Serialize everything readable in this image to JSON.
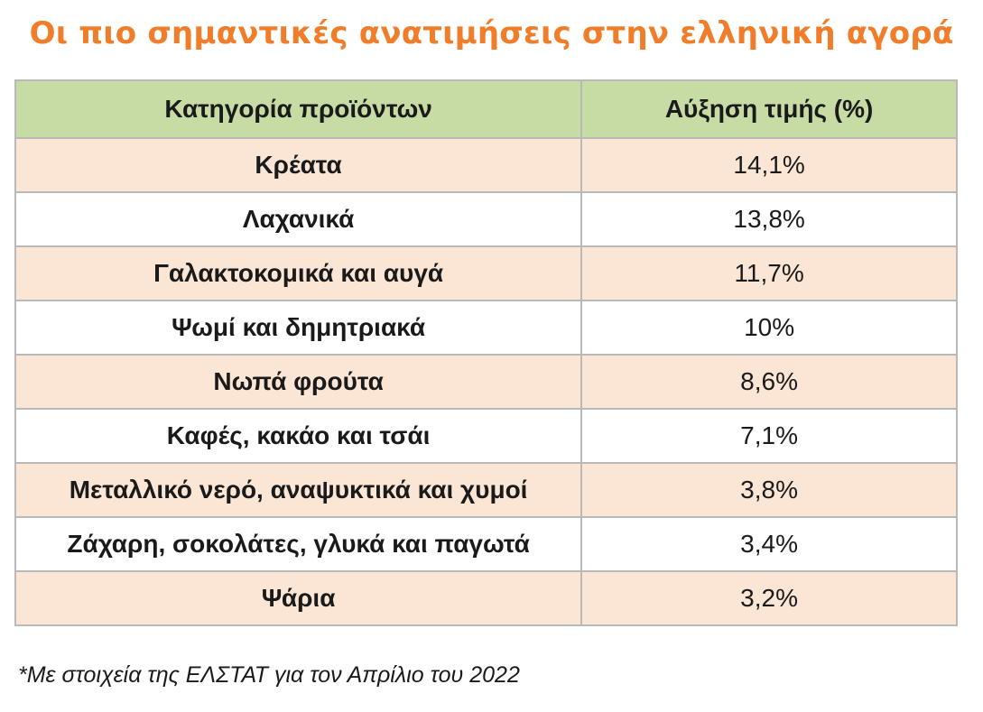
{
  "title": "Οι πιο σημαντικές ανατιμήσεις στην ελληνική αγορά",
  "footnote": "*Με στοιχεία της ΕΛΣΤΑΤ για τον Απρίλιο του 2022",
  "colors": {
    "title": "#f07d2a",
    "header_bg": "#c7dba5",
    "row_tint": "#fbe6d6",
    "border": "#b9b9b9"
  },
  "chart_data": {
    "type": "table",
    "columns": [
      "Κατηγορία προϊόντων",
      "Αύξηση τιμής (%)"
    ],
    "rows": [
      {
        "category": "Κρέατα",
        "value_label": "14,1%",
        "value": 14.1
      },
      {
        "category": "Λαχανικά",
        "value_label": "13,8%",
        "value": 13.8
      },
      {
        "category": "Γαλακτοκομικά και αυγά",
        "value_label": "11,7%",
        "value": 11.7
      },
      {
        "category": "Ψωμί και δημητριακά",
        "value_label": "10%",
        "value": 10
      },
      {
        "category": "Νωπά φρούτα",
        "value_label": "8,6%",
        "value": 8.6
      },
      {
        "category": "Καφές, κακάο και τσάι",
        "value_label": "7,1%",
        "value": 7.1
      },
      {
        "category": "Μεταλλικό νερό, αναψυκτικά και χυμοί",
        "value_label": "3,8%",
        "value": 3.8
      },
      {
        "category": "Ζάχαρη, σοκολάτες, γλυκά και παγωτά",
        "value_label": "3,4%",
        "value": 3.4
      },
      {
        "category": "Ψάρια",
        "value_label": "3,2%",
        "value": 3.2
      }
    ]
  }
}
